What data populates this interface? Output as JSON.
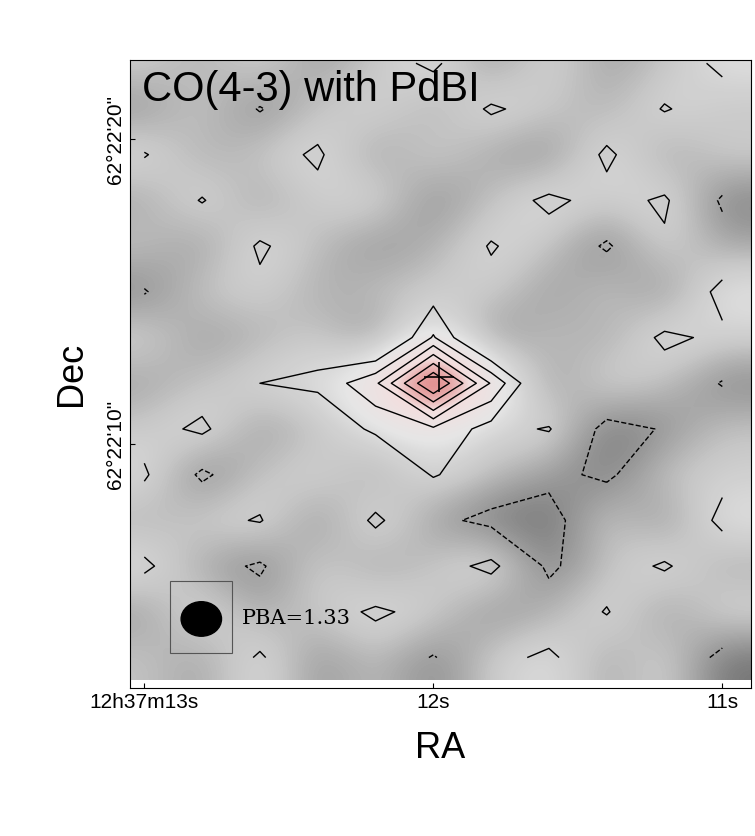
{
  "chart_data": {
    "type": "contour",
    "title": "CO(4-3) with PdBI",
    "x_label": "RA",
    "y_label": "Dec",
    "annotation": "PBA=1.33",
    "x": [
      13.0,
      12.8,
      12.6,
      12.4,
      12.2,
      12.0,
      11.8,
      11.6,
      11.4,
      11.2,
      11.0
    ],
    "y": [
      3,
      4.5,
      6,
      7.5,
      9,
      10.5,
      12,
      13.5,
      15,
      16.5,
      18,
      19.5,
      21,
      22.5
    ],
    "cells": [
      [
        0.3,
        -0.5,
        1.2,
        -0.8,
        0.2,
        -1.1,
        0.5,
        1.3,
        -0.4,
        0.8,
        -1.5
      ],
      [
        -0.6,
        1.1,
        -0.3,
        0.4,
        1.2,
        0.6,
        -0.9,
        -0.2,
        1.1,
        -0.7,
        0.9
      ],
      [
        1.3,
        -0.4,
        -1.2,
        0.7,
        -0.5,
        0.3,
        1.4,
        -1.3,
        0.2,
        1.2,
        -0.3
      ],
      [
        -0.2,
        0.6,
        1.1,
        -0.9,
        1.3,
        -0.6,
        -1.4,
        -1.6,
        0.5,
        -0.8,
        1.4
      ],
      [
        1.2,
        -1.3,
        0.3,
        0.9,
        -0.4,
        1.1,
        0.2,
        -0.6,
        -1.3,
        0.4,
        0.6
      ],
      [
        0.4,
        1.3,
        -0.7,
        0.2,
        1.2,
        1.8,
        0.6,
        1.1,
        -1.5,
        -0.9,
        0.3
      ],
      [
        -0.5,
        0.2,
        1.0,
        1.2,
        2.8,
        7.2,
        2.9,
        -0.8,
        0.9,
        0.2,
        -1.1
      ],
      [
        0.8,
        -0.6,
        -0.2,
        0.5,
        -0.9,
        2.1,
        -1.0,
        0.3,
        -0.4,
        1.3,
        0.7
      ],
      [
        -1.1,
        0.4,
        0.7,
        -0.3,
        0.2,
        0.5,
        0.6,
        -0.7,
        0.4,
        -0.9,
        1.5
      ],
      [
        0.3,
        -0.7,
        1.2,
        0.1,
        -0.8,
        -0.2,
        1.1,
        0.3,
        -1.2,
        0.8,
        -0.4
      ],
      [
        -0.4,
        1.1,
        -0.5,
        0.6,
        1.0,
        -1.0,
        0.2,
        1.3,
        0.5,
        1.2,
        -1.2
      ],
      [
        1.1,
        -0.3,
        0.4,
        1.2,
        -0.6,
        0.7,
        -0.4,
        -0.9,
        1.3,
        -0.5,
        0.6
      ],
      [
        -0.8,
        0.5,
        -1.1,
        0.3,
        0.9,
        -0.3,
        1.2,
        0.4,
        -0.2,
        1.1,
        0.3
      ],
      [
        0.6,
        -0.2,
        0.8,
        -0.6,
        0.3,
        1.3,
        -0.7,
        0.9,
        -0.5,
        0.2,
        1.3
      ]
    ],
    "levels": [
      -2,
      -1,
      1,
      2,
      3,
      4,
      5,
      6
    ],
    "color": "black",
    "points": {
      "x": [
        11.98
      ],
      "y": [
        12.2
      ],
      "marker": "+"
    },
    "xlim": [
      13.05,
      10.9
    ],
    "ylim": [
      2.0,
      22.6
    ],
    "xticks": [
      {
        "value": 13,
        "label": "12h37m13s"
      },
      {
        "value": 12,
        "label": "12s"
      },
      {
        "value": 11,
        "label": "11s"
      }
    ],
    "yticks": [
      {
        "value": 10,
        "label": "62°22'10\""
      },
      {
        "value": 20,
        "label": "62°22'20\""
      }
    ],
    "grid": false
  }
}
